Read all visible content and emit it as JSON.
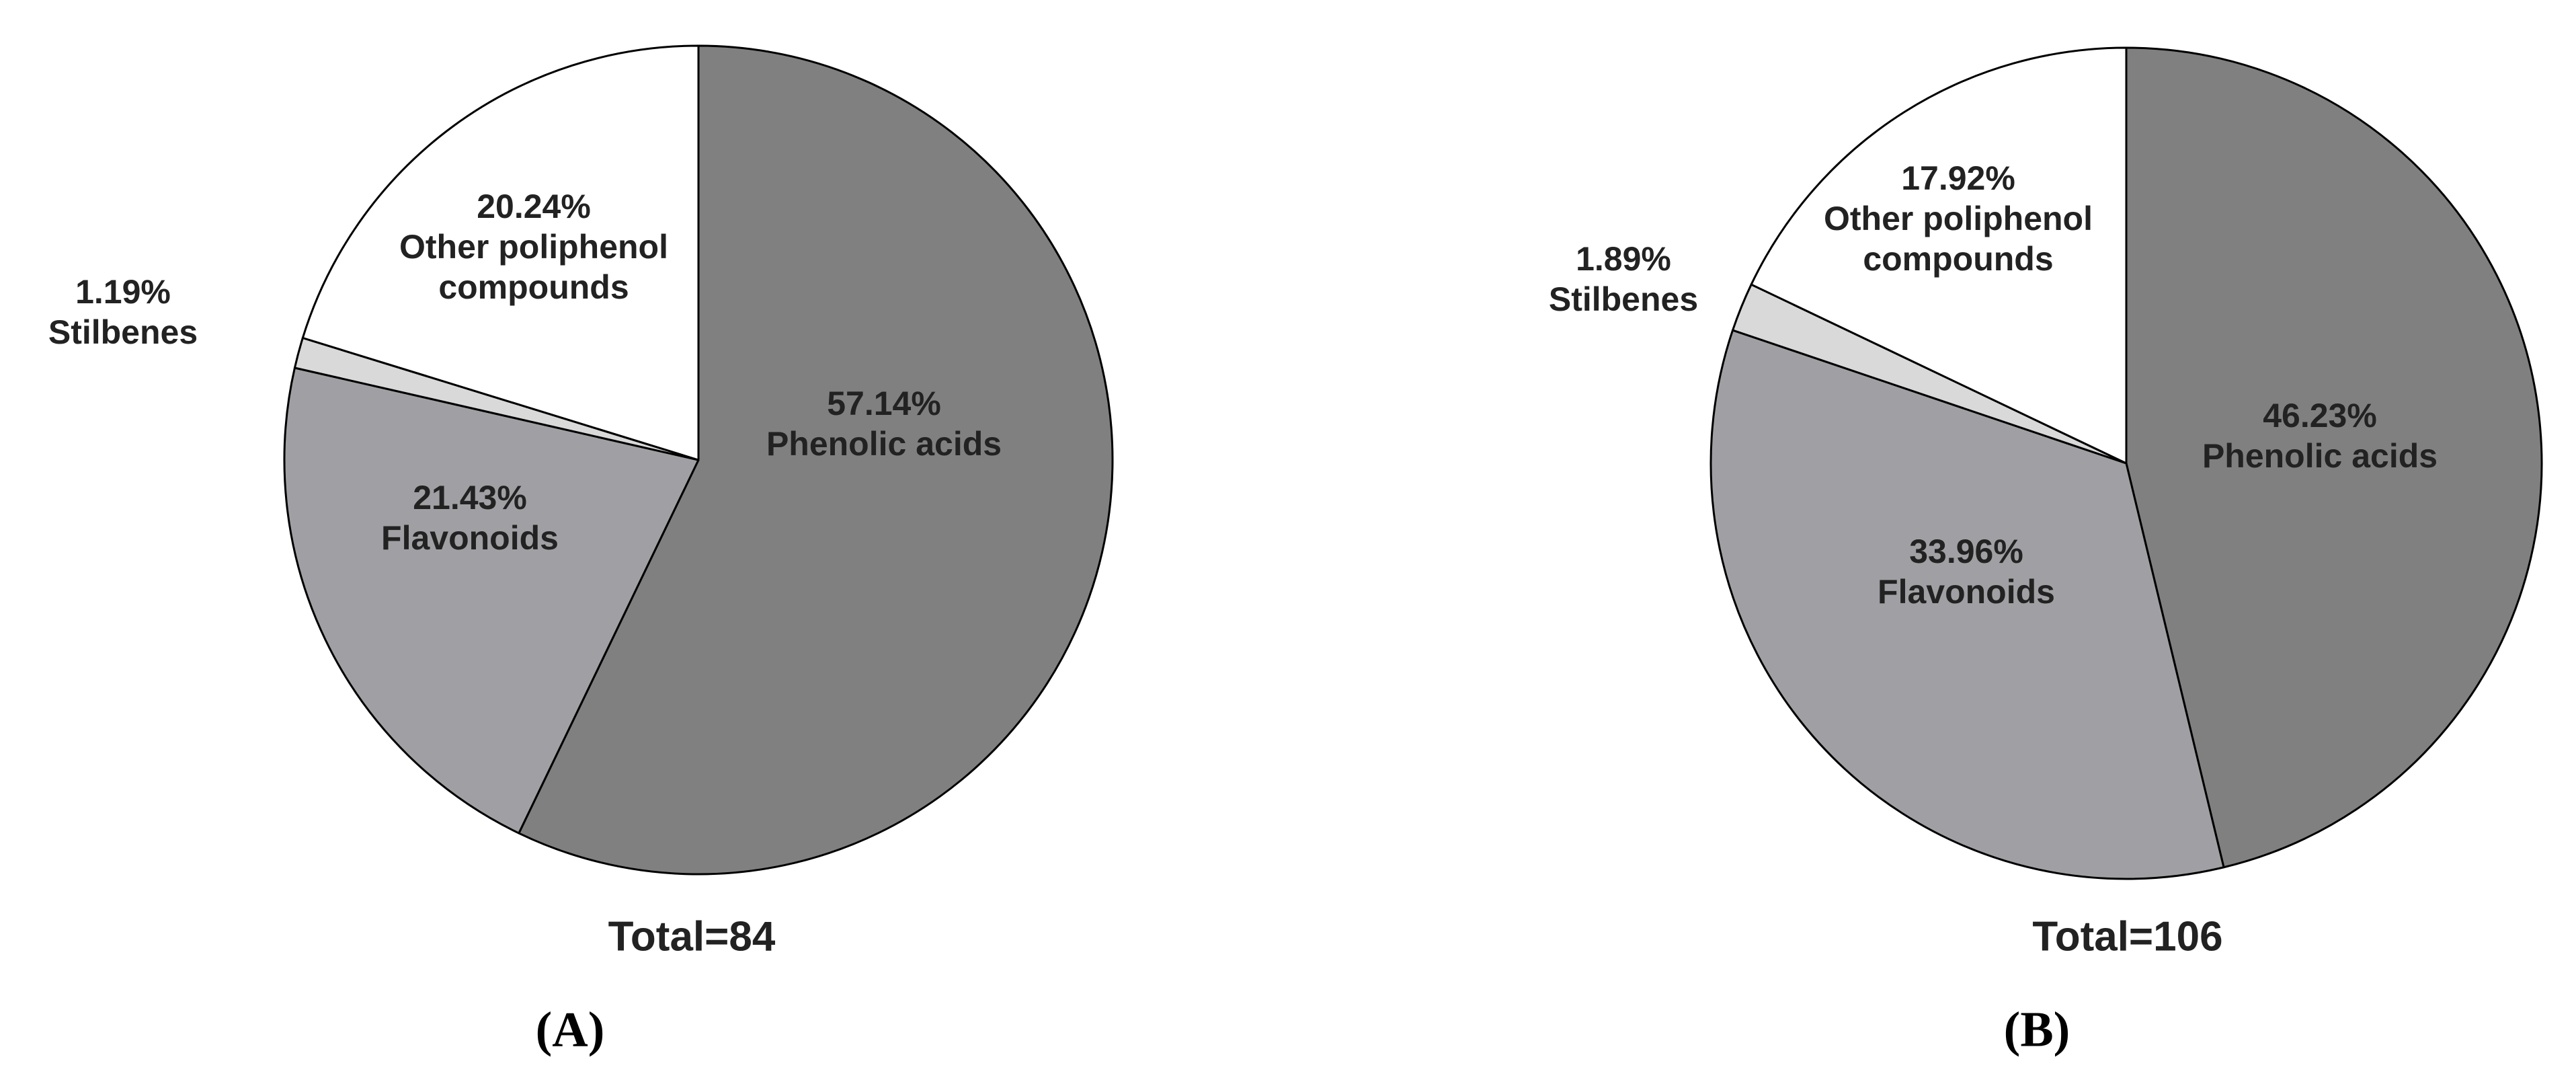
{
  "chart_data": [
    {
      "type": "pie",
      "categories": [
        "Phenolic acids",
        "Flavonoids",
        "Stilbenes",
        "Other poliphenol compounds"
      ],
      "values": [
        57.14,
        21.43,
        1.19,
        20.24
      ],
      "value_labels": [
        "57.14%",
        "21.43%",
        "1.19%",
        "20.24%"
      ],
      "colors": [
        "#808080",
        "#a0a0a4",
        "#d9d9d9",
        "#ffffff"
      ],
      "total_label": "Total=84",
      "caption": "(A)"
    },
    {
      "type": "pie",
      "categories": [
        "Phenolic acids",
        "Flavonoids",
        "Stilbenes",
        "Other poliphenol compounds"
      ],
      "values": [
        46.23,
        33.96,
        1.89,
        17.92
      ],
      "value_labels": [
        "46.23%",
        "33.96%",
        "1.89%",
        "17.92%"
      ],
      "colors": [
        "#808080",
        "#a0a0a4",
        "#d9d9d9",
        "#ffffff"
      ],
      "total_label": "Total=106",
      "caption": "(B)"
    }
  ]
}
